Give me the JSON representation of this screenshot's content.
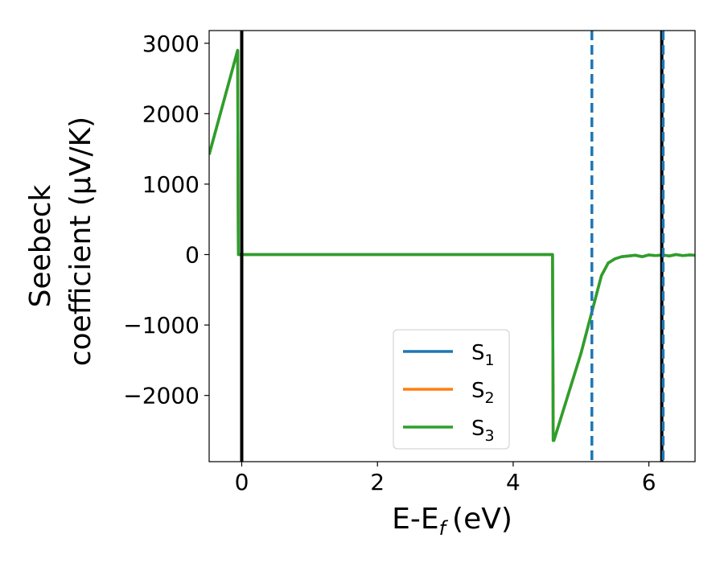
{
  "chart_data": {
    "type": "line",
    "xlabel": "E-E",
    "xlabel_sub": "f",
    "xlabel_unit": "(eV)",
    "ylabel_line1": "Seebeck",
    "ylabel_line2": "coefficient  (μV/K)",
    "xlim": [
      -0.48,
      6.68
    ],
    "ylim": [
      -2940,
      3180
    ],
    "xticks": [
      0,
      2,
      4,
      6
    ],
    "xtick_labels": [
      "0",
      "2",
      "4",
      "6"
    ],
    "yticks": [
      3000,
      2000,
      1000,
      0,
      -1000,
      -2000
    ],
    "ytick_labels": [
      "3000",
      "2000",
      "1000",
      "0",
      "−1000",
      "−2000"
    ],
    "legend_position": "lower center",
    "legend": [
      {
        "base": "S",
        "sub": "1",
        "color": "#1f77b4"
      },
      {
        "base": "S",
        "sub": "2",
        "color": "#ff7f0e"
      },
      {
        "base": "S",
        "sub": "3",
        "color": "#2ca02c"
      }
    ],
    "vlines": [
      {
        "x": 0.0,
        "color": "#000000",
        "style": "solid"
      },
      {
        "x": 6.19,
        "color": "#000000",
        "style": "solid"
      },
      {
        "x": 5.16,
        "color": "#1f77b4",
        "style": "dashed"
      },
      {
        "x": 6.21,
        "color": "#1f77b4",
        "style": "dashed"
      }
    ],
    "series": [
      {
        "name": "S1",
        "color": "#1f77b4",
        "x": [
          -0.48,
          -0.06,
          -0.05,
          4.58,
          4.59,
          4.6,
          5.0,
          5.3,
          5.4,
          5.5,
          5.6,
          5.7,
          5.8,
          5.9,
          6.0,
          6.1,
          6.2,
          6.3,
          6.4,
          6.5,
          6.6,
          6.68
        ],
        "y": [
          1420,
          2900,
          0,
          0,
          -2640,
          -2640,
          -1400,
          -300,
          -120,
          -60,
          -30,
          -20,
          -10,
          -30,
          -5,
          -15,
          -5,
          -20,
          0,
          -15,
          -5,
          -10
        ]
      },
      {
        "name": "S2",
        "color": "#ff7f0e",
        "x": [
          -0.48,
          -0.06,
          -0.05,
          4.58,
          4.59,
          4.6,
          5.0,
          5.3,
          5.4,
          5.5,
          5.6,
          5.7,
          5.8,
          5.9,
          6.0,
          6.1,
          6.2,
          6.3,
          6.4,
          6.5,
          6.6,
          6.68
        ],
        "y": [
          1420,
          2900,
          0,
          0,
          -2640,
          -2640,
          -1400,
          -300,
          -120,
          -60,
          -30,
          -20,
          -10,
          -30,
          -5,
          -15,
          -5,
          -20,
          0,
          -15,
          -5,
          -10
        ]
      },
      {
        "name": "S3",
        "color": "#2ca02c",
        "x": [
          -0.48,
          -0.06,
          -0.05,
          4.58,
          4.59,
          4.6,
          5.0,
          5.3,
          5.4,
          5.5,
          5.6,
          5.7,
          5.8,
          5.9,
          6.0,
          6.1,
          6.2,
          6.3,
          6.4,
          6.5,
          6.6,
          6.68
        ],
        "y": [
          1420,
          2900,
          0,
          0,
          -2640,
          -2640,
          -1400,
          -300,
          -120,
          -60,
          -30,
          -20,
          -10,
          -30,
          -5,
          -15,
          -5,
          -20,
          0,
          -15,
          -5,
          -10
        ]
      }
    ]
  }
}
